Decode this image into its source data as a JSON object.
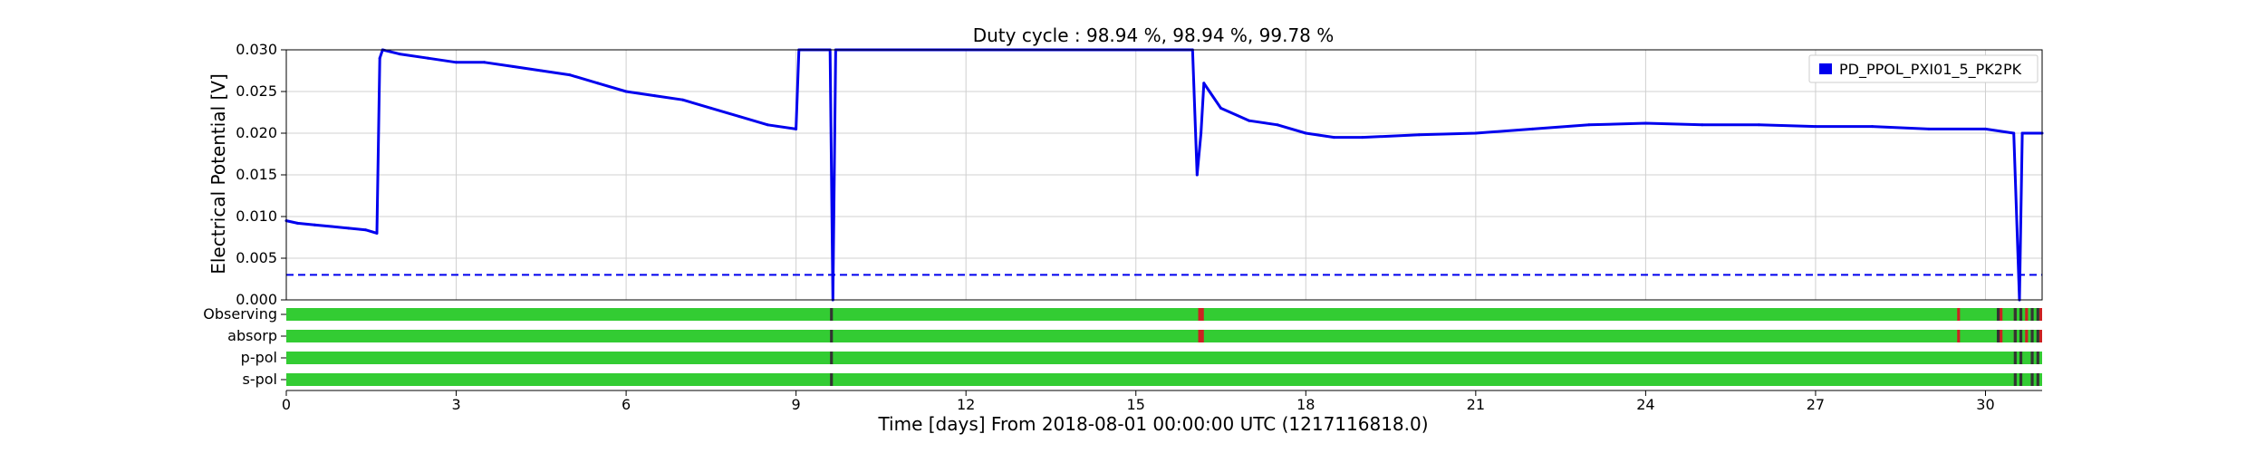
{
  "chart_data": {
    "type": "line",
    "title": "Duty cycle : 98.94 %, 98.94 %, 99.78 %",
    "xlabel": "Time [days] From 2018-08-01 00:00:00 UTC (1217116818.0)",
    "ylabel": "Electrical Potential [V]",
    "xlim": [
      0,
      31
    ],
    "ylim": [
      0,
      0.03
    ],
    "x_ticks": [
      0,
      3,
      6,
      9,
      12,
      15,
      18,
      21,
      24,
      27,
      30
    ],
    "x_tick_labels": [
      "0",
      "3",
      "6",
      "9",
      "12",
      "15",
      "18",
      "21",
      "24",
      "27",
      "30"
    ],
    "y_ticks": [
      0,
      0.005,
      0.01,
      0.015,
      0.02,
      0.025,
      0.03
    ],
    "y_tick_labels": [
      "0.000",
      "0.005",
      "0.010",
      "0.015",
      "0.020",
      "0.025",
      "0.030"
    ],
    "grid": true,
    "legend_position": "top-right",
    "colors": {
      "series": "#0000ee",
      "active": "#33cc33",
      "flagged": "#cc2222",
      "gap": "#333333"
    },
    "series": [
      {
        "name": "PD_PPOL_PXI01_5_PK2PK",
        "x": [
          0,
          0.2,
          0.5,
          0.8,
          1.1,
          1.4,
          1.6,
          1.65,
          1.7,
          2.0,
          2.5,
          3.0,
          3.5,
          4.0,
          4.5,
          5.0,
          5.5,
          6.0,
          6.5,
          7.0,
          7.5,
          8.0,
          8.5,
          9.0,
          9.05,
          9.1,
          9.4,
          9.6,
          9.65,
          9.7,
          9.9,
          10.0,
          16.0,
          16.08,
          16.15,
          16.2,
          16.3,
          16.5,
          17.0,
          17.5,
          18.0,
          18.5,
          19.0,
          20.0,
          21.0,
          22.0,
          23.0,
          24.0,
          25.0,
          26.0,
          27.0,
          28.0,
          29.0,
          30.0,
          30.5,
          30.6,
          30.65,
          30.7,
          31.0
        ],
        "y": [
          0.0095,
          0.0092,
          0.009,
          0.0088,
          0.0086,
          0.0084,
          0.008,
          0.029,
          0.03,
          0.0295,
          0.029,
          0.0285,
          0.0285,
          0.028,
          0.0275,
          0.027,
          0.026,
          0.025,
          0.0245,
          0.024,
          0.023,
          0.022,
          0.021,
          0.0205,
          0.03,
          0.03,
          0.03,
          0.03,
          0.0,
          0.03,
          0.03,
          0.03,
          0.03,
          0.015,
          0.02,
          0.026,
          0.025,
          0.023,
          0.0215,
          0.021,
          0.02,
          0.0195,
          0.0195,
          0.0198,
          0.02,
          0.0205,
          0.021,
          0.0212,
          0.021,
          0.021,
          0.0208,
          0.0208,
          0.0205,
          0.0205,
          0.02,
          0.0,
          0.02,
          0.02,
          0.02
        ]
      }
    ],
    "threshold": {
      "y": 0.003,
      "style": "dashed"
    },
    "segment_rows": [
      {
        "label": "Observing",
        "flagged": [
          [
            16.1,
            16.2
          ],
          [
            29.5,
            29.55
          ],
          [
            30.2,
            30.3
          ],
          [
            30.5,
            30.55
          ],
          [
            30.7,
            30.75
          ],
          [
            30.95,
            31.0
          ]
        ],
        "gaps": [
          [
            9.6,
            9.65
          ],
          [
            30.2,
            30.25
          ],
          [
            30.5,
            30.55
          ],
          [
            30.6,
            30.65
          ],
          [
            30.8,
            30.85
          ],
          [
            30.9,
            30.95
          ]
        ]
      },
      {
        "label": "absorp",
        "flagged": [
          [
            16.1,
            16.2
          ],
          [
            29.5,
            29.55
          ],
          [
            30.2,
            30.3
          ],
          [
            30.5,
            30.55
          ],
          [
            30.7,
            30.75
          ],
          [
            30.95,
            31.0
          ]
        ],
        "gaps": [
          [
            9.6,
            9.65
          ],
          [
            30.2,
            30.25
          ],
          [
            30.5,
            30.55
          ],
          [
            30.6,
            30.65
          ],
          [
            30.8,
            30.85
          ],
          [
            30.9,
            30.95
          ]
        ]
      },
      {
        "label": "p-pol",
        "flagged": [],
        "gaps": [
          [
            9.6,
            9.65
          ],
          [
            30.5,
            30.55
          ],
          [
            30.6,
            30.65
          ],
          [
            30.8,
            30.85
          ],
          [
            30.9,
            30.95
          ]
        ]
      },
      {
        "label": "s-pol",
        "flagged": [],
        "gaps": [
          [
            9.6,
            9.65
          ],
          [
            30.5,
            30.55
          ],
          [
            30.6,
            30.65
          ],
          [
            30.8,
            30.85
          ],
          [
            30.9,
            30.95
          ]
        ]
      }
    ]
  }
}
